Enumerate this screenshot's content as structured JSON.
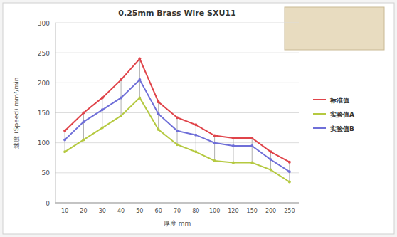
{
  "chart_data": {
    "type": "line",
    "title": "0.25mm Brass Wire SXU11",
    "y_label": "速度 (Speed) mm²/min",
    "x_label": "厚度 mm",
    "categories": [
      "10",
      "20",
      "30",
      "40",
      "50",
      "60",
      "70",
      "80",
      "100",
      "120",
      "150",
      "200",
      "250"
    ],
    "series": [
      {
        "name": "标准值",
        "color": "#e0444a",
        "values": [
          120,
          150,
          175,
          205,
          240,
          168,
          142,
          130,
          112,
          108,
          108,
          85,
          68
        ]
      },
      {
        "name": "实验值A",
        "color": "#b5c940",
        "values": [
          85,
          105,
          125,
          145,
          175,
          122,
          97,
          85,
          70,
          67,
          67,
          55,
          35
        ]
      },
      {
        "name": "实验值B",
        "color": "#6f6fd8",
        "values": [
          105,
          135,
          155,
          175,
          205,
          148,
          120,
          113,
          100,
          95,
          95,
          72,
          52
        ]
      }
    ],
    "ylim": [
      0,
      300
    ],
    "yticks": [
      0,
      50,
      100,
      150,
      200,
      250,
      300
    ],
    "grid": true,
    "legend": "right"
  }
}
